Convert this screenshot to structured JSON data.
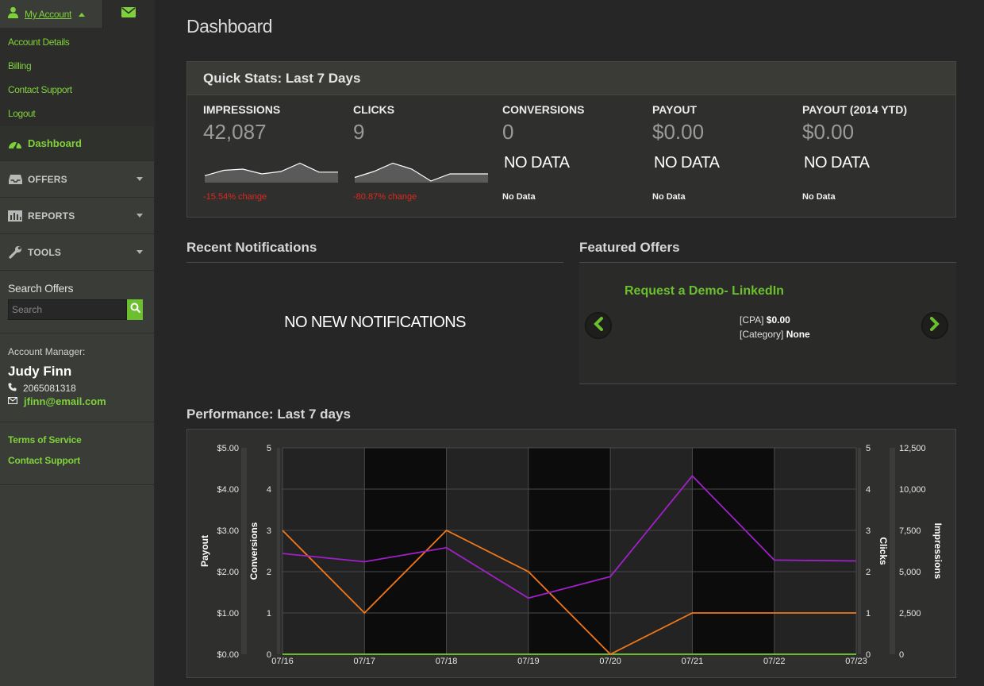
{
  "sidebar": {
    "account_label": "My Account",
    "account_menu": [
      "Account Details",
      "Billing",
      "Contact Support",
      "Logout"
    ],
    "nav": [
      {
        "label": "Dashboard",
        "icon": "dashboard-gauge-icon"
      },
      {
        "label": "OFFERS",
        "icon": "inbox-tray-icon"
      },
      {
        "label": "REPORTS",
        "icon": "bar-chart-icon"
      },
      {
        "label": "TOOLS",
        "icon": "wrench-icon"
      }
    ],
    "search": {
      "title": "Search Offers",
      "placeholder": "Search"
    },
    "manager": {
      "label": "Account Manager:",
      "name": "Judy Finn",
      "phone": "2065081318",
      "email": "jfinn@email.com"
    },
    "footer_links": [
      "Terms of Service",
      "Contact Support"
    ]
  },
  "page_title": "Dashboard",
  "quick_stats": {
    "title": "Quick Stats: Last 7 Days",
    "stats": [
      {
        "label": "IMPRESSIONS",
        "value": "42,087",
        "change": "-15.54% change",
        "spark": [
          0.45,
          0.9,
          1.0,
          0.6,
          0.8,
          1.5,
          0.75,
          0.75
        ]
      },
      {
        "label": "CLICKS",
        "value": "9",
        "change": "-80.87% change",
        "spark": [
          0.3,
          0.8,
          1.5,
          1.0,
          0.0,
          0.6,
          0.6,
          0.6
        ]
      },
      {
        "label": "CONVERSIONS",
        "value": "0",
        "no_data": "NO DATA",
        "note": "No Data"
      },
      {
        "label": "PAYOUT",
        "value": "$0.00",
        "no_data": "NO DATA",
        "note": "No Data"
      },
      {
        "label": "PAYOUT (2014 YTD)",
        "value": "$0.00",
        "no_data": "NO DATA",
        "note": "No Data"
      }
    ]
  },
  "notifications": {
    "title": "Recent Notifications",
    "empty": "NO NEW NOTIFICATIONS"
  },
  "featured": {
    "title": "Featured Offers",
    "offer_name": "Request a Demo- LinkedIn",
    "cpa_label": "[CPA]",
    "cpa_value": "$0.00",
    "category_label": "[Category]",
    "category_value": "None"
  },
  "performance": {
    "title": "Performance: Last 7 days"
  },
  "colors": {
    "accent": "#7fd13b",
    "negative": "#e0261f",
    "impressions_line": "#a020c8",
    "clicks_line": "#f07818",
    "payout_line": "#6cbf2f"
  },
  "chart_data": {
    "type": "line",
    "x": [
      "07/16",
      "07/17",
      "07/18",
      "07/19",
      "07/20",
      "07/21",
      "07/22",
      "07/23"
    ],
    "series": [
      {
        "name": "Impressions",
        "axis": "right-outer",
        "values": [
          6100,
          5600,
          6450,
          3400,
          4700,
          10800,
          5700,
          5650
        ]
      },
      {
        "name": "Clicks",
        "axis": "right-inner",
        "values": [
          3,
          1,
          3,
          2,
          0,
          1,
          1,
          1
        ]
      },
      {
        "name": "Conversions",
        "axis": "left-inner",
        "values": [
          0,
          0,
          0,
          0,
          0,
          0,
          0,
          0
        ]
      },
      {
        "name": "Payout",
        "axis": "left-outer",
        "values": [
          0,
          0,
          0,
          0,
          0,
          0,
          0,
          0
        ]
      }
    ],
    "axes": {
      "payout": {
        "label": "Payout",
        "ticks": [
          "$5.00",
          "$4.00",
          "$3.00",
          "$2.00",
          "$1.00",
          "$0.00"
        ],
        "range": [
          0,
          5
        ]
      },
      "conversions": {
        "label": "Conversions",
        "ticks": [
          "5",
          "4",
          "3",
          "2",
          "1",
          "0"
        ],
        "range": [
          0,
          5
        ]
      },
      "clicks": {
        "label": "Clicks",
        "ticks": [
          "5",
          "4",
          "3",
          "2",
          "1",
          "0"
        ],
        "range": [
          0,
          5
        ]
      },
      "impressions": {
        "label": "Impressions",
        "ticks": [
          "12,500",
          "10,000",
          "7,500",
          "5,000",
          "2,500",
          "0"
        ],
        "range": [
          0,
          12500
        ]
      }
    },
    "grid": true
  }
}
